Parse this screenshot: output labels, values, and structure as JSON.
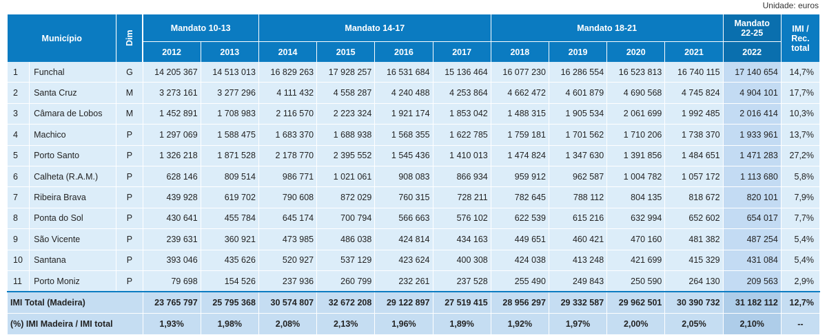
{
  "unit_label": "Unidade: euros",
  "header": {
    "municipio": "Município",
    "dim": "Dim",
    "mandatos": [
      "Mandato 10-13",
      "Mandato 14-17",
      "Mandato 18-21",
      "Mandato 22-25"
    ],
    "imi_rec": "IMI / Rec. total",
    "years": [
      "2012",
      "2013",
      "2014",
      "2015",
      "2016",
      "2017",
      "2018",
      "2019",
      "2020",
      "2021",
      "2022"
    ]
  },
  "rows": [
    {
      "rank": "1",
      "name": "Funchal",
      "dim": "G",
      "values": [
        "14 205 367",
        "14 513 013",
        "16 829 263",
        "17 928 257",
        "16 531 684",
        "15 136 464",
        "16 077 230",
        "16 286 554",
        "16 523 813",
        "16 740 115",
        "17 140 654"
      ],
      "pct": "14,7%"
    },
    {
      "rank": "2",
      "name": "Santa Cruz",
      "dim": "M",
      "values": [
        "3 273 161",
        "3 277 296",
        "4 111 432",
        "4 558 287",
        "4 240 488",
        "4 253 864",
        "4 662 472",
        "4 601 879",
        "4 690 568",
        "4 745 824",
        "4 904 101"
      ],
      "pct": "17,7%"
    },
    {
      "rank": "3",
      "name": "Câmara de Lobos",
      "dim": "M",
      "values": [
        "1 452 891",
        "1 708 983",
        "2 116 570",
        "2 223 324",
        "1 921 174",
        "1 853 042",
        "1 488 315",
        "1 905 534",
        "2 061 699",
        "1 992 485",
        "2 016 414"
      ],
      "pct": "10,3%"
    },
    {
      "rank": "4",
      "name": "Machico",
      "dim": "P",
      "values": [
        "1 297 069",
        "1 588 475",
        "1 683 370",
        "1 688 938",
        "1 568 355",
        "1 622 785",
        "1 759 181",
        "1 701 562",
        "1 710 206",
        "1 738 370",
        "1 933 961"
      ],
      "pct": "13,7%"
    },
    {
      "rank": "5",
      "name": "Porto Santo",
      "dim": "P",
      "values": [
        "1 326 218",
        "1 871 528",
        "2 178 770",
        "2 395 552",
        "1 545 436",
        "1 410 013",
        "1 474 824",
        "1 347 630",
        "1 391 856",
        "1 484 651",
        "1 471 283"
      ],
      "pct": "27,2%"
    },
    {
      "rank": "6",
      "name": "Calheta (R.A.M.)",
      "dim": "P",
      "values": [
        "628 146",
        "809 514",
        "986 771",
        "1 021 061",
        "908 083",
        "866 934",
        "959 912",
        "962 587",
        "1 004 782",
        "1 057 172",
        "1 113 680"
      ],
      "pct": "5,8%"
    },
    {
      "rank": "7",
      "name": "Ribeira Brava",
      "dim": "P",
      "values": [
        "439 928",
        "619 702",
        "790 608",
        "872 029",
        "760 315",
        "728 211",
        "782 645",
        "788 112",
        "804 135",
        "818 672",
        "820 101"
      ],
      "pct": "7,9%"
    },
    {
      "rank": "8",
      "name": "Ponta do Sol",
      "dim": "P",
      "values": [
        "430 641",
        "455 784",
        "645 174",
        "700 794",
        "566 663",
        "576 102",
        "622 539",
        "615 216",
        "632 994",
        "652 602",
        "654 017"
      ],
      "pct": "7,7%"
    },
    {
      "rank": "9",
      "name": "São Vicente",
      "dim": "P",
      "values": [
        "239 631",
        "360 921",
        "473 985",
        "486 038",
        "424 814",
        "434 163",
        "449 651",
        "460 421",
        "470 160",
        "481 382",
        "487 254"
      ],
      "pct": "5,4%"
    },
    {
      "rank": "10",
      "name": "Santana",
      "dim": "P",
      "values": [
        "393 046",
        "435 626",
        "520 927",
        "537 129",
        "423 624",
        "400 308",
        "424 038",
        "413 248",
        "421 699",
        "415 329",
        "431 084"
      ],
      "pct": "5,4%"
    },
    {
      "rank": "11",
      "name": "Porto Moniz",
      "dim": "P",
      "values": [
        "79 698",
        "154 526",
        "237 936",
        "260 799",
        "232 261",
        "237 528",
        "255 490",
        "249 843",
        "250 590",
        "264 130",
        "209 563"
      ],
      "pct": "2,9%"
    }
  ],
  "total": {
    "label": "IMI Total (Madeira)",
    "values": [
      "23 765 797",
      "25 795 368",
      "30 574 807",
      "32 672 208",
      "29 122 897",
      "27 519 415",
      "28 956 297",
      "29 332 587",
      "29 962 501",
      "30 390 732",
      "31 182 112"
    ],
    "pct": "12,7%"
  },
  "share": {
    "label": "(%) IMI Madeira / IMI total",
    "values": [
      "1,93%",
      "1,98%",
      "2,08%",
      "2,13%",
      "1,96%",
      "1,89%",
      "1,92%",
      "1,97%",
      "2,00%",
      "2,05%",
      "2,10%"
    ],
    "pct": "--"
  }
}
